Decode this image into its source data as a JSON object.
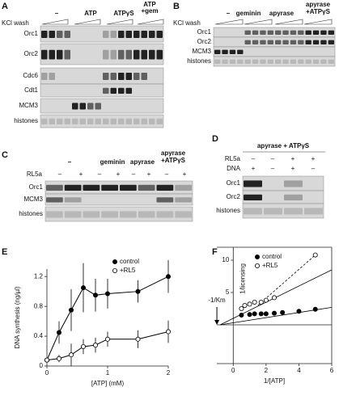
{
  "panels": [
    {
      "label": "A",
      "wash": "KCl wash",
      "conditions": [
        [
          "–"
        ],
        [
          "ATP"
        ],
        [
          "ATPγS"
        ],
        [
          "ATP",
          "+gem"
        ]
      ],
      "rows": [
        "Orc1",
        "Orc2",
        "Cdc6",
        "Cdt1",
        "MCM3",
        "histones"
      ]
    },
    {
      "label": "B",
      "wash": "KCl wash",
      "conditions": [
        [
          "–"
        ],
        [
          "geminin"
        ],
        [
          "apyrase"
        ],
        [
          "apyrase",
          "+ATPγS"
        ]
      ],
      "rows": [
        "Orc1",
        "Orc2",
        "MCM3",
        "histones"
      ]
    },
    {
      "label": "C",
      "conditions": [
        [
          "–"
        ],
        [
          "geminin"
        ],
        [
          "apyrase"
        ],
        [
          "apyrase",
          "+ATPγS"
        ]
      ],
      "sign_label": "RL5a",
      "signs": [
        "–",
        "+",
        "–",
        "+",
        "–",
        "+",
        "–",
        "+"
      ],
      "rows": [
        "Orc1",
        "MCM3",
        "histones"
      ]
    },
    {
      "label": "D",
      "header": "apyrase + ATPγS",
      "sign_rows": [
        {
          "label": "RL5a",
          "signs": [
            "–",
            "–",
            "+",
            "+"
          ]
        },
        {
          "label": "DNA",
          "signs": [
            "+",
            "–",
            "+",
            "–"
          ]
        }
      ],
      "rows": [
        "Orc1",
        "Orc2",
        "histones"
      ]
    }
  ],
  "chart_data": [
    {
      "type": "line",
      "panel_label": "E",
      "x_label": "[ATP] (mM)",
      "y_label": "DNA synthesis (ng/µl)",
      "x": [
        0,
        0.2,
        0.4,
        0.6,
        0.8,
        1,
        1.5,
        2
      ],
      "xlim": [
        0,
        2
      ],
      "ylim": [
        0,
        1.3
      ],
      "xticks": [
        0,
        1,
        2
      ],
      "yticks": [
        0,
        0.4,
        0.8,
        1.2
      ],
      "series": [
        {
          "name": "control",
          "color": "#000000",
          "marker": "filled",
          "values": [
            0.08,
            0.45,
            0.75,
            1.05,
            0.95,
            0.97,
            1.0,
            1.2
          ],
          "errors": [
            0.02,
            0.15,
            0.28,
            0.33,
            0.22,
            0.2,
            0.15,
            0.22
          ]
        },
        {
          "name": "+RL5",
          "color": "#000000",
          "marker": "open",
          "values": [
            0.08,
            0.1,
            0.15,
            0.26,
            0.28,
            0.36,
            0.36,
            0.46
          ],
          "errors": [
            0.02,
            0.05,
            0.15,
            0.1,
            0.1,
            0.1,
            0.12,
            0.15
          ]
        }
      ]
    },
    {
      "type": "scatter",
      "panel_label": "F",
      "x_label": "1/[ATP]",
      "y_label": "1/licensing",
      "annotation": "-1/Km",
      "xlim": [
        -1,
        6
      ],
      "ylim": [
        -6,
        12
      ],
      "xticks": [
        0,
        2,
        4,
        6
      ],
      "yticks": [
        5,
        10
      ],
      "series": [
        {
          "name": "control",
          "color": "#000000",
          "marker": "filled",
          "x": [
            0.5,
            1,
            1.3,
            1.7,
            2,
            2.5,
            3,
            4,
            5
          ],
          "values": [
            1.5,
            1.6,
            1.7,
            1.7,
            1.7,
            1.8,
            1.9,
            2.1,
            2.4
          ],
          "fit": {
            "x": [
              -0.8,
              6
            ],
            "values": [
              0,
              2.7
            ]
          }
        },
        {
          "name": "+RL5",
          "color": "#000000",
          "marker": "open",
          "x": [
            0.5,
            0.7,
            1,
            1.3,
            1.7,
            2,
            2.5,
            5
          ],
          "values": [
            2.5,
            3,
            3.2,
            3.5,
            3.5,
            3.8,
            4.2,
            10.8
          ],
          "fit": {
            "x": [
              -0.8,
              6
            ],
            "values": [
              0,
              8.5
            ]
          },
          "dashed_fit": {
            "x": [
              1.5,
              5
            ],
            "values": [
              3,
              10.8
            ]
          }
        }
      ]
    }
  ]
}
